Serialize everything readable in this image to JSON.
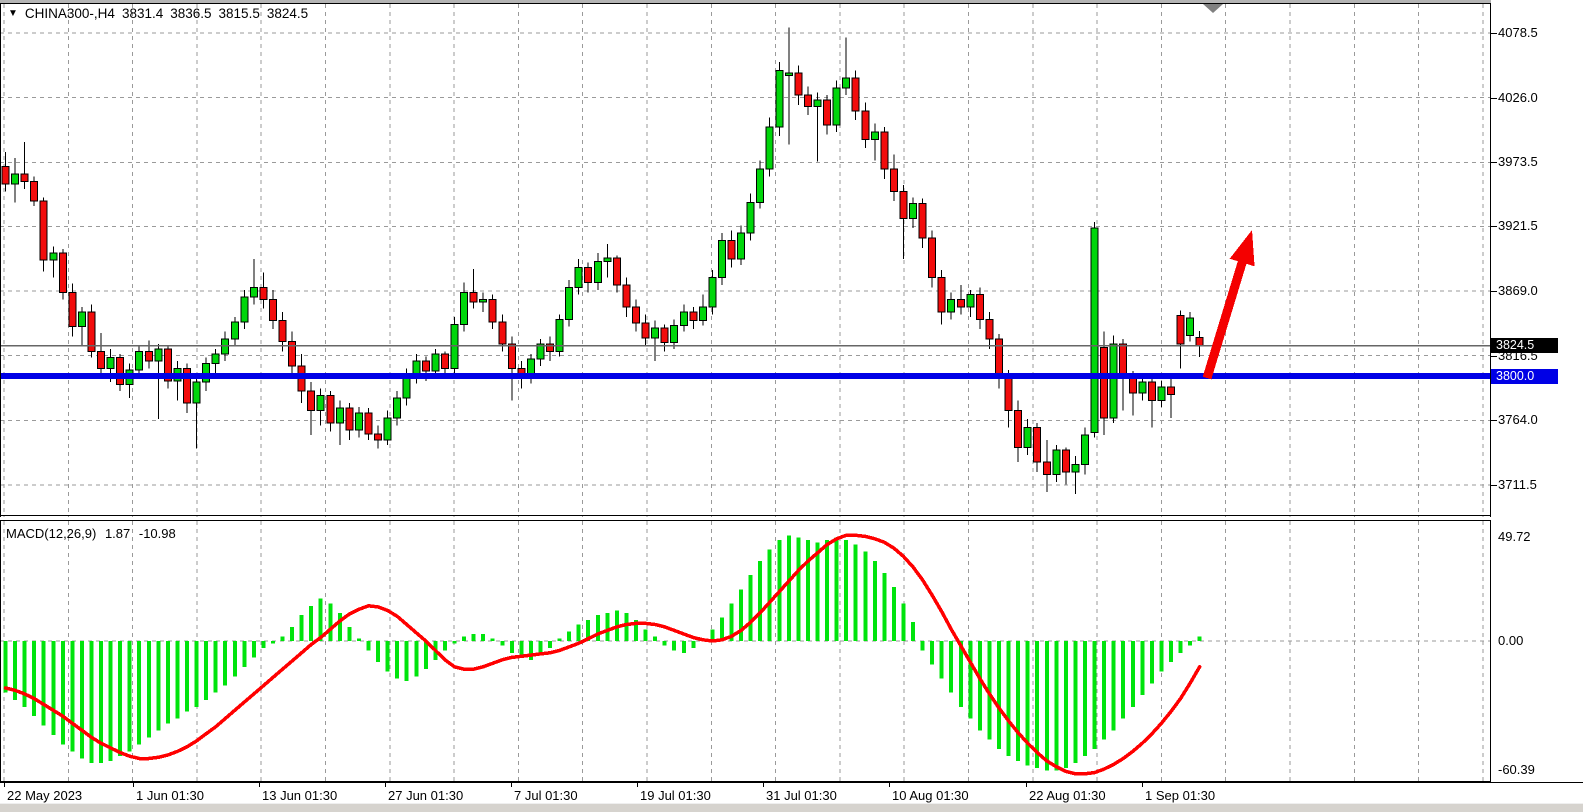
{
  "window": {
    "title_marker": "▼",
    "symbol": "CHINA300-,H4",
    "ohlc": {
      "open": "3831.4",
      "high": "3836.5",
      "low": "3815.5",
      "close": "3824.5"
    }
  },
  "indicator": {
    "label": "MACD(12,26,9)",
    "main_value": "1.87",
    "signal_value": "-10.98",
    "scale": {
      "top": "49.72",
      "zero": "0.00",
      "bottom": "-60.39"
    }
  },
  "price_axis": {
    "grid_labels": [
      "4078.5",
      "4026.0",
      "3973.5",
      "3921.5",
      "3869.0",
      "3816.5",
      "3764.0",
      "3711.5"
    ],
    "last_price_badge": {
      "value": "3824.5",
      "bg": "#000000",
      "fg": "#ffffff"
    },
    "hline_badge": {
      "value": "3800.0",
      "bg": "#0000e6",
      "fg": "#ffffff"
    }
  },
  "time_axis": {
    "labels": [
      {
        "text": "22 May 2023",
        "x": 4
      },
      {
        "text": "1 Jun 01:30",
        "x": 133
      },
      {
        "text": "13 Jun 01:30",
        "x": 259
      },
      {
        "text": "27 Jun 01:30",
        "x": 385
      },
      {
        "text": "7 Jul 01:30",
        "x": 511
      },
      {
        "text": "19 Jul 01:30",
        "x": 637
      },
      {
        "text": "31 Jul 01:30",
        "x": 763
      },
      {
        "text": "10 Aug 01:30",
        "x": 889
      },
      {
        "text": "22 Aug 01:30",
        "x": 1026
      },
      {
        "text": "1 Sep 01:30",
        "x": 1142
      }
    ]
  },
  "annotations": {
    "horizontal_line": {
      "price": 3800.0,
      "color": "#0000e6",
      "thickness": 6
    },
    "last_price_line": {
      "price": 3824.5,
      "color": "#666666"
    },
    "arrow": {
      "color": "#f40000",
      "from": [
        1207,
        378
      ],
      "to": [
        1252,
        230
      ]
    },
    "shift_marker": {
      "color": "#808080"
    }
  },
  "colors": {
    "bull": "#00d60b",
    "bear": "#f20c0c",
    "outline": "#000000",
    "hist": "#00e40c",
    "signal": "#ff0000",
    "grid": "#9a9a9a",
    "bg": "#ffffff",
    "text": "#000000"
  },
  "chart_data": [
    {
      "type": "candlestick",
      "title": "CHINA300-,H4",
      "timeframe": "H4",
      "y_range": [
        3690,
        4090
      ],
      "grid_prices": [
        4078.5,
        4026.0,
        3973.5,
        3921.5,
        3869.0,
        3816.5,
        3764.0,
        3711.5
      ],
      "x_labels": [
        "22 May 2023",
        "1 Jun 01:30",
        "13 Jun 01:30",
        "27 Jun 01:30",
        "7 Jul 01:30",
        "19 Jul 01:30",
        "31 Jul 01:30",
        "10 Aug 01:30",
        "22 Aug 01:30",
        "1 Sep 01:30"
      ],
      "candles": [
        [
          3970,
          3982,
          3950,
          3956
        ],
        [
          3956,
          3977,
          3941,
          3964
        ],
        [
          3964,
          3990,
          3952,
          3958
        ],
        [
          3958,
          3962,
          3938,
          3942
        ],
        [
          3942,
          3945,
          3885,
          3894
        ],
        [
          3894,
          3905,
          3880,
          3900
        ],
        [
          3900,
          3903,
          3862,
          3868
        ],
        [
          3868,
          3875,
          3832,
          3840
        ],
        [
          3840,
          3856,
          3825,
          3852
        ],
        [
          3852,
          3858,
          3815,
          3820
        ],
        [
          3820,
          3835,
          3800,
          3806
        ],
        [
          3806,
          3822,
          3795,
          3815
        ],
        [
          3815,
          3818,
          3788,
          3793
        ],
        [
          3793,
          3810,
          3782,
          3805
        ],
        [
          3805,
          3825,
          3798,
          3820
        ],
        [
          3820,
          3829,
          3806,
          3812
        ],
        [
          3812,
          3826,
          3765,
          3822
        ],
        [
          3822,
          3824,
          3790,
          3796
        ],
        [
          3796,
          3812,
          3780,
          3806
        ],
        [
          3806,
          3810,
          3770,
          3778
        ],
        [
          3778,
          3800,
          3741,
          3795
        ],
        [
          3795,
          3815,
          3788,
          3810
        ],
        [
          3810,
          3822,
          3800,
          3818
        ],
        [
          3818,
          3836,
          3812,
          3830
        ],
        [
          3830,
          3848,
          3824,
          3844
        ],
        [
          3844,
          3870,
          3838,
          3864
        ],
        [
          3864,
          3895,
          3858,
          3872
        ],
        [
          3872,
          3884,
          3855,
          3862
        ],
        [
          3862,
          3870,
          3838,
          3845
        ],
        [
          3845,
          3852,
          3820,
          3828
        ],
        [
          3828,
          3836,
          3800,
          3808
        ],
        [
          3808,
          3818,
          3778,
          3788
        ],
        [
          3788,
          3795,
          3752,
          3772
        ],
        [
          3772,
          3790,
          3760,
          3784
        ],
        [
          3784,
          3788,
          3755,
          3762
        ],
        [
          3762,
          3780,
          3744,
          3774
        ],
        [
          3774,
          3778,
          3748,
          3756
        ],
        [
          3756,
          3775,
          3750,
          3770
        ],
        [
          3770,
          3774,
          3748,
          3753
        ],
        [
          3753,
          3760,
          3741,
          3748
        ],
        [
          3748,
          3772,
          3744,
          3766
        ],
        [
          3766,
          3788,
          3760,
          3782
        ],
        [
          3782,
          3806,
          3776,
          3800
        ],
        [
          3800,
          3818,
          3794,
          3812
        ],
        [
          3812,
          3816,
          3796,
          3804
        ],
        [
          3804,
          3822,
          3800,
          3818
        ],
        [
          3818,
          3820,
          3798,
          3806
        ],
        [
          3806,
          3848,
          3802,
          3842
        ],
        [
          3842,
          3876,
          3836,
          3868
        ],
        [
          3868,
          3887,
          3855,
          3860
        ],
        [
          3860,
          3868,
          3852,
          3862
        ],
        [
          3862,
          3866,
          3838,
          3844
        ],
        [
          3844,
          3850,
          3820,
          3826
        ],
        [
          3826,
          3832,
          3780,
          3806
        ],
        [
          3806,
          3812,
          3790,
          3798
        ],
        [
          3798,
          3818,
          3794,
          3814
        ],
        [
          3814,
          3830,
          3808,
          3826
        ],
        [
          3826,
          3832,
          3812,
          3820
        ],
        [
          3820,
          3850,
          3816,
          3846
        ],
        [
          3846,
          3878,
          3840,
          3872
        ],
        [
          3872,
          3895,
          3866,
          3888
        ],
        [
          3888,
          3892,
          3868,
          3876
        ],
        [
          3876,
          3900,
          3870,
          3893
        ],
        [
          3893,
          3907,
          3880,
          3896
        ],
        [
          3896,
          3898,
          3868,
          3874
        ],
        [
          3874,
          3880,
          3848,
          3856
        ],
        [
          3856,
          3862,
          3836,
          3843
        ],
        [
          3843,
          3850,
          3824,
          3831
        ],
        [
          3831,
          3845,
          3812,
          3839
        ],
        [
          3839,
          3842,
          3820,
          3827
        ],
        [
          3827,
          3846,
          3822,
          3841
        ],
        [
          3841,
          3858,
          3836,
          3852
        ],
        [
          3852,
          3856,
          3838,
          3845
        ],
        [
          3845,
          3866,
          3841,
          3856
        ],
        [
          3856,
          3886,
          3850,
          3880
        ],
        [
          3880,
          3916,
          3874,
          3910
        ],
        [
          3910,
          3918,
          3888,
          3895
        ],
        [
          3895,
          3922,
          3890,
          3916
        ],
        [
          3916,
          3948,
          3910,
          3941
        ],
        [
          3941,
          3975,
          3936,
          3968
        ],
        [
          3968,
          4010,
          3962,
          4002
        ],
        [
          4002,
          4055,
          3995,
          4048
        ],
        [
          4044,
          4083,
          3988,
          4046
        ],
        [
          4046,
          4052,
          4020,
          4028
        ],
        [
          4028,
          4035,
          4012,
          4019
        ],
        [
          4019,
          4030,
          3974,
          4024
        ],
        [
          4024,
          4028,
          3996,
          4004
        ],
        [
          4004,
          4040,
          3998,
          4034
        ],
        [
          4034,
          4075,
          4028,
          4042
        ],
        [
          4042,
          4048,
          4008,
          4015
        ],
        [
          4015,
          4022,
          3985,
          3992
        ],
        [
          3992,
          4005,
          3975,
          3998
        ],
        [
          3998,
          4002,
          3960,
          3968
        ],
        [
          3968,
          3980,
          3942,
          3950
        ],
        [
          3950,
          3955,
          3895,
          3928
        ],
        [
          3928,
          3945,
          3920,
          3940
        ],
        [
          3940,
          3944,
          3904,
          3912
        ],
        [
          3912,
          3918,
          3872,
          3880
        ],
        [
          3880,
          3886,
          3842,
          3852
        ],
        [
          3852,
          3868,
          3846,
          3862
        ],
        [
          3862,
          3874,
          3850,
          3856
        ],
        [
          3856,
          3870,
          3848,
          3866
        ],
        [
          3866,
          3872,
          3838,
          3846
        ],
        [
          3846,
          3852,
          3822,
          3830
        ],
        [
          3830,
          3834,
          3790,
          3798
        ],
        [
          3798,
          3805,
          3758,
          3772
        ],
        [
          3772,
          3780,
          3730,
          3742
        ],
        [
          3742,
          3765,
          3736,
          3758
        ],
        [
          3758,
          3762,
          3722,
          3730
        ],
        [
          3730,
          3748,
          3706,
          3720
        ],
        [
          3720,
          3744,
          3714,
          3740
        ],
        [
          3740,
          3742,
          3712,
          3722
        ],
        [
          3722,
          3735,
          3704,
          3728
        ],
        [
          3728,
          3758,
          3720,
          3752
        ],
        [
          3754,
          3925,
          3750,
          3920
        ],
        [
          3823,
          3836,
          3752,
          3766
        ],
        [
          3766,
          3833,
          3762,
          3826
        ],
        [
          3826,
          3830,
          3772,
          3800
        ],
        [
          3800,
          3804,
          3768,
          3786
        ],
        [
          3786,
          3800,
          3780,
          3795
        ],
        [
          3795,
          3798,
          3758,
          3780
        ],
        [
          3780,
          3796,
          3775,
          3791
        ],
        [
          3791,
          3798,
          3766,
          3785
        ],
        [
          3849,
          3853,
          3806,
          3826
        ],
        [
          3833,
          3852,
          3828,
          3847
        ],
        [
          3831.4,
          3836.5,
          3815.5,
          3824.5
        ]
      ]
    },
    {
      "type": "bar+line",
      "title": "MACD(12,26,9)",
      "y_range": [
        -60.39,
        49.72
      ],
      "legend": [
        "histogram",
        "signal"
      ],
      "histogram": [
        -22,
        -25,
        -28,
        -32,
        -36,
        -40,
        -44,
        -47,
        -50,
        -52,
        -52,
        -51,
        -49,
        -47,
        -44,
        -41,
        -38,
        -35,
        -33,
        -30,
        -28,
        -25,
        -22,
        -19,
        -15,
        -11,
        -7,
        -3,
        -1,
        2,
        6,
        11,
        15,
        18,
        16,
        12,
        6,
        1,
        -4,
        -9,
        -13,
        -16,
        -17,
        -15,
        -12,
        -8,
        -4,
        -1,
        2,
        3,
        3,
        1,
        -2,
        -5,
        -7,
        -8,
        -6,
        -3,
        1,
        4,
        7,
        9,
        11,
        12,
        13,
        12,
        9,
        5,
        2,
        -2,
        -4,
        -5,
        -3,
        1,
        5,
        10,
        16,
        22,
        28,
        34,
        39,
        43,
        45,
        44,
        43,
        42,
        43,
        44,
        43,
        41,
        38,
        34,
        29,
        23,
        16,
        8,
        -4,
        -10,
        -16,
        -22,
        -28,
        -33,
        -38,
        -42,
        -46,
        -49,
        -51,
        -53,
        -54,
        -55,
        -55,
        -54,
        -52,
        -49,
        -46,
        -42,
        -38,
        -33,
        -28,
        -23,
        -18,
        -13,
        -9,
        -5,
        -2,
        1.87
      ],
      "signal": [
        -20,
        -21,
        -22.5,
        -24.5,
        -27,
        -29.5,
        -32,
        -35,
        -38,
        -41,
        -43.5,
        -45.5,
        -47.5,
        -49,
        -50,
        -50,
        -49.5,
        -48.5,
        -47,
        -45,
        -42.5,
        -39.5,
        -36.5,
        -33,
        -29.5,
        -26,
        -22.5,
        -19,
        -15.5,
        -12,
        -8.5,
        -5,
        -1.5,
        1.5,
        5,
        8.5,
        11.5,
        13.5,
        15,
        14.5,
        13,
        10.5,
        7,
        3.5,
        0,
        -4,
        -8,
        -11,
        -12,
        -12,
        -11,
        -9.5,
        -8,
        -7,
        -6.5,
        -6,
        -5.5,
        -5,
        -4,
        -2.5,
        -1,
        1,
        3,
        4.5,
        6,
        7,
        7.5,
        7.5,
        7,
        6,
        4.5,
        3,
        1.5,
        0.5,
        0,
        0.5,
        2,
        4.5,
        8,
        12,
        16.5,
        21,
        25.5,
        30,
        34,
        37.5,
        41,
        43.5,
        45,
        45,
        44.5,
        43.5,
        42,
        39.5,
        36,
        31.5,
        26,
        19.5,
        12.5,
        5,
        -2,
        -9,
        -16,
        -22.5,
        -28.5,
        -34,
        -39,
        -43.5,
        -47.5,
        -51,
        -53.5,
        -55.5,
        -56.5,
        -56.5,
        -56,
        -54.5,
        -52.5,
        -50,
        -47,
        -43.5,
        -39.5,
        -35,
        -30,
        -24.5,
        -18,
        -11
      ]
    }
  ]
}
